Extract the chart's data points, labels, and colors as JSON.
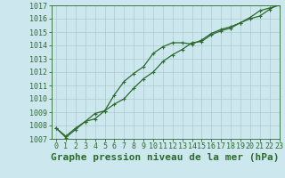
{
  "title": "Graphe pression niveau de la mer (hPa)",
  "bg_color": "#cce8ee",
  "grid_color": "#aacccc",
  "line_color": "#2d6a2d",
  "xlim": [
    -0.5,
    23
  ],
  "ylim": [
    1007,
    1017
  ],
  "xticks": [
    0,
    1,
    2,
    3,
    4,
    5,
    6,
    7,
    8,
    9,
    10,
    11,
    12,
    13,
    14,
    15,
    16,
    17,
    18,
    19,
    20,
    21,
    22,
    23
  ],
  "yticks": [
    1007,
    1008,
    1009,
    1010,
    1011,
    1012,
    1013,
    1014,
    1015,
    1016,
    1017
  ],
  "series1_x": [
    0,
    1,
    2,
    3,
    4,
    5,
    6,
    7,
    8,
    9,
    10,
    11,
    12,
    13,
    14,
    15,
    16,
    17,
    18,
    19,
    20,
    21,
    22,
    23
  ],
  "series1_y": [
    1007.8,
    1007.1,
    1007.7,
    1008.3,
    1008.5,
    1009.1,
    1009.6,
    1010.0,
    1010.8,
    1011.5,
    1012.0,
    1012.8,
    1013.3,
    1013.7,
    1014.2,
    1014.3,
    1014.8,
    1015.1,
    1015.3,
    1015.7,
    1016.1,
    1016.6,
    1016.8,
    1017.0
  ],
  "series2_x": [
    0,
    1,
    2,
    3,
    4,
    5,
    6,
    7,
    8,
    9,
    10,
    11,
    12,
    13,
    14,
    15,
    16,
    17,
    18,
    19,
    20,
    21,
    22,
    23
  ],
  "series2_y": [
    1007.8,
    1007.2,
    1007.8,
    1008.3,
    1008.9,
    1009.1,
    1010.3,
    1011.3,
    1011.9,
    1012.4,
    1013.4,
    1013.9,
    1014.2,
    1014.2,
    1014.1,
    1014.4,
    1014.9,
    1015.2,
    1015.4,
    1015.7,
    1016.0,
    1016.2,
    1016.7,
    1017.1
  ],
  "marker_size": 3.5,
  "line_width": 0.9,
  "title_fontsize": 8,
  "tick_fontsize": 6
}
